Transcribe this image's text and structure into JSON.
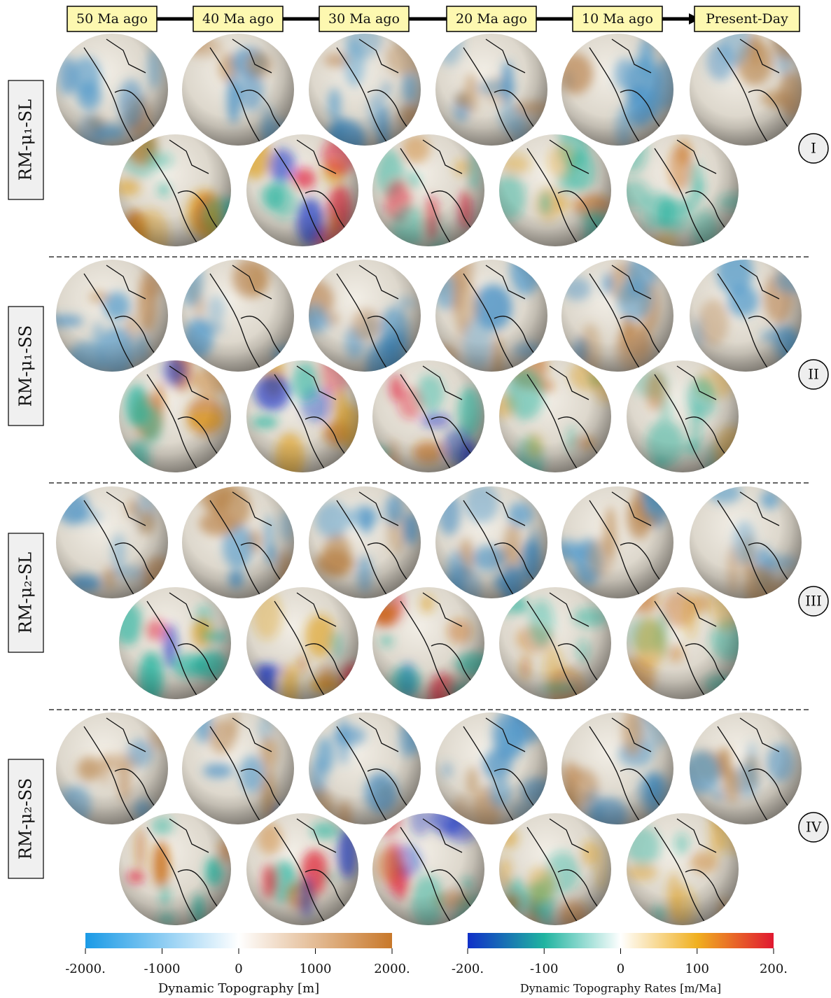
{
  "timeline": [
    "50 Ma ago",
    "40 Ma ago",
    "30 Ma ago",
    "20 Ma ago",
    "10 Ma ago",
    "Present-Day"
  ],
  "rows": [
    {
      "label": "RM-μ₁-SL",
      "numeral": "I"
    },
    {
      "label": "RM-μ₁-SS",
      "numeral": "II"
    },
    {
      "label": "RM-μ₂-SL",
      "numeral": "III"
    },
    {
      "label": "RM-μ₂-SS",
      "numeral": "IV"
    }
  ],
  "colorbars": [
    {
      "label": "Dynamic Topography [m]",
      "lim": [
        -2000,
        2000
      ],
      "ticks": [
        {
          "value": -2000,
          "label": "-2000."
        },
        -1000,
        0,
        1000,
        {
          "value": 2000,
          "label": "2000."
        }
      ],
      "colors": [
        "#1a9ae6",
        "#ffffff",
        "#c8782a"
      ]
    },
    {
      "label": "Dynamic Topography Rates [m/Ma]",
      "lim": [
        -200,
        200
      ],
      "ticks": [
        {
          "value": -200,
          "label": "-200."
        },
        -100,
        0,
        100,
        {
          "value": 200,
          "label": "200."
        }
      ],
      "colors": [
        "#1030c8",
        "#20b4a0",
        "#ffffff",
        "#f0b020",
        "#e01830"
      ]
    }
  ]
}
